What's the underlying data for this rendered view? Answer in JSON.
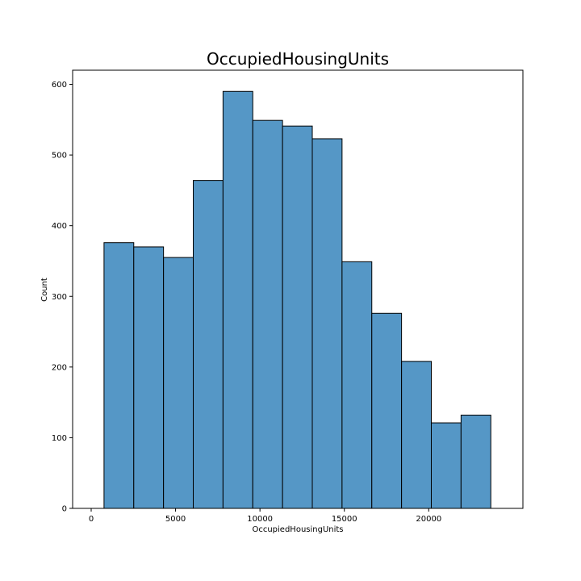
{
  "chart_data": {
    "type": "bar",
    "title": "OccupiedHousingUnits",
    "xlabel": "OccupiedHousingUnits",
    "ylabel": "Count",
    "bin_edges": [
      760,
      2523,
      4286,
      6049,
      7812,
      9575,
      11338,
      13101,
      14864,
      16627,
      18390,
      20153,
      21916,
      23679
    ],
    "values": [
      376,
      370,
      355,
      464,
      590,
      549,
      541,
      523,
      349,
      276,
      208,
      121,
      132
    ],
    "xlim": [
      -1100,
      25580
    ],
    "ylim": [
      0,
      620
    ],
    "xticks": [
      0,
      5000,
      10000,
      15000,
      20000
    ],
    "xtick_labels": [
      "0",
      "5000",
      "10000",
      "15000",
      "20000"
    ],
    "yticks": [
      0,
      100,
      200,
      300,
      400,
      500,
      600
    ],
    "ytick_labels": [
      "0",
      "100",
      "200",
      "300",
      "400",
      "500",
      "600"
    ],
    "bar_color": "#5597c6",
    "edge_color": "#000000",
    "grid": false,
    "legend": "none"
  }
}
